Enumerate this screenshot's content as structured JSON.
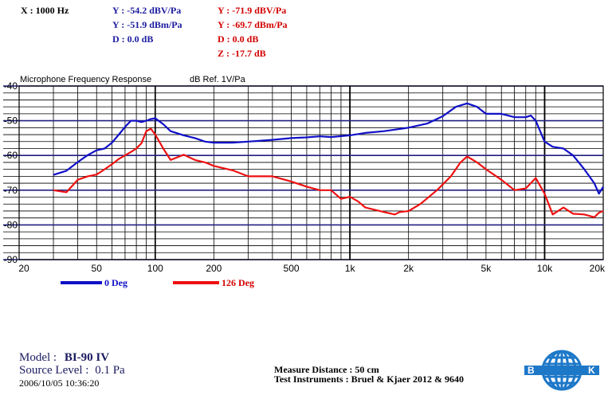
{
  "readout": {
    "x": "X : 1000 Hz",
    "blue": [
      "Y : -54.2 dBV/Pa",
      "Y : -51.9 dBm/Pa",
      "D : 0.0 dB"
    ],
    "red": [
      "Y : -71.9 dBV/Pa",
      "Y : -69.7 dBm/Pa",
      "D : 0.0 dB",
      "Z : -17.7 dB"
    ]
  },
  "colors": {
    "blue": "#1010c8",
    "red": "#ee1111",
    "grid": "#000000"
  },
  "chart_data": {
    "type": "line",
    "title": "Microphone Frequency Response",
    "ylabel": "dB Ref. 1V/Pa",
    "xscale": "log",
    "xlim": [
      20,
      20000
    ],
    "ylim": [
      -90,
      -40
    ],
    "grid": true,
    "x_ticks": [
      20,
      50,
      100,
      200,
      500,
      1000,
      2000,
      5000,
      10000,
      20000
    ],
    "x_tick_labels": [
      "20",
      "50",
      "100",
      "200",
      "500",
      "1k",
      "2k",
      "5k",
      "10k",
      "20k"
    ],
    "y_ticks": [
      -40,
      -50,
      -60,
      -70,
      -80,
      -90
    ],
    "y_tick_labels": [
      "-40",
      "-50",
      "-60",
      "-70",
      "-80",
      "-90"
    ],
    "series": [
      {
        "name": "0 Deg",
        "color": "#1010c8",
        "points": [
          [
            30,
            -65.6
          ],
          [
            35,
            -64.4
          ],
          [
            40,
            -61.9
          ],
          [
            45,
            -59.9
          ],
          [
            50,
            -58.5
          ],
          [
            55,
            -58.0
          ],
          [
            60,
            -56.3
          ],
          [
            65,
            -54.0
          ],
          [
            70,
            -51.8
          ],
          [
            75,
            -50.0
          ],
          [
            80,
            -50.0
          ],
          [
            85,
            -50.4
          ],
          [
            90,
            -50.0
          ],
          [
            95,
            -49.5
          ],
          [
            100,
            -49.3
          ],
          [
            110,
            -51.0
          ],
          [
            120,
            -53.0
          ],
          [
            140,
            -54.2
          ],
          [
            160,
            -55.0
          ],
          [
            180,
            -56.0
          ],
          [
            200,
            -56.3
          ],
          [
            250,
            -56.3
          ],
          [
            300,
            -56.0
          ],
          [
            400,
            -55.5
          ],
          [
            500,
            -55.0
          ],
          [
            600,
            -54.8
          ],
          [
            700,
            -54.5
          ],
          [
            800,
            -54.7
          ],
          [
            1000,
            -54.2
          ],
          [
            1200,
            -53.5
          ],
          [
            1500,
            -53.0
          ],
          [
            2000,
            -52.0
          ],
          [
            2500,
            -50.8
          ],
          [
            3000,
            -48.7
          ],
          [
            3500,
            -46.0
          ],
          [
            4000,
            -45.0
          ],
          [
            4500,
            -46.0
          ],
          [
            5000,
            -48.0
          ],
          [
            6000,
            -48.0
          ],
          [
            7000,
            -49.0
          ],
          [
            8000,
            -49.0
          ],
          [
            8500,
            -48.5
          ],
          [
            9000,
            -50.0
          ],
          [
            10000,
            -56.0
          ],
          [
            11000,
            -57.5
          ],
          [
            12500,
            -58.0
          ],
          [
            14000,
            -60.0
          ],
          [
            16000,
            -64.0
          ],
          [
            18000,
            -68.0
          ],
          [
            19000,
            -71.0
          ],
          [
            20000,
            -69.0
          ]
        ]
      },
      {
        "name": "126 Deg",
        "color": "#ee1111",
        "points": [
          [
            30,
            -70.0
          ],
          [
            35,
            -70.6
          ],
          [
            40,
            -67.0
          ],
          [
            45,
            -66.0
          ],
          [
            50,
            -65.5
          ],
          [
            55,
            -64.0
          ],
          [
            60,
            -62.5
          ],
          [
            65,
            -61.0
          ],
          [
            70,
            -60.0
          ],
          [
            75,
            -59.0
          ],
          [
            80,
            -58.0
          ],
          [
            85,
            -56.5
          ],
          [
            90,
            -53.0
          ],
          [
            95,
            -52.3
          ],
          [
            100,
            -54.0
          ],
          [
            110,
            -58.0
          ],
          [
            120,
            -61.3
          ],
          [
            140,
            -59.8
          ],
          [
            160,
            -61.3
          ],
          [
            180,
            -62.0
          ],
          [
            200,
            -63.0
          ],
          [
            250,
            -64.3
          ],
          [
            300,
            -66.0
          ],
          [
            400,
            -66.0
          ],
          [
            500,
            -67.5
          ],
          [
            600,
            -69.0
          ],
          [
            700,
            -70.0
          ],
          [
            800,
            -70.0
          ],
          [
            900,
            -72.5
          ],
          [
            1000,
            -71.9
          ],
          [
            1100,
            -73.2
          ],
          [
            1200,
            -75.0
          ],
          [
            1500,
            -76.3
          ],
          [
            1700,
            -77.0
          ],
          [
            1800,
            -76.3
          ],
          [
            2000,
            -76.0
          ],
          [
            2300,
            -74.0
          ],
          [
            2800,
            -70.0
          ],
          [
            3300,
            -66.0
          ],
          [
            3700,
            -62.0
          ],
          [
            4000,
            -60.3
          ],
          [
            4500,
            -62.0
          ],
          [
            5000,
            -64.0
          ],
          [
            6000,
            -67.0
          ],
          [
            7000,
            -70.0
          ],
          [
            8000,
            -69.5
          ],
          [
            9000,
            -66.5
          ],
          [
            10000,
            -71.0
          ],
          [
            11000,
            -77.0
          ],
          [
            12500,
            -75.0
          ],
          [
            14000,
            -76.8
          ],
          [
            16000,
            -77.0
          ],
          [
            18000,
            -77.8
          ],
          [
            19000,
            -76.5
          ],
          [
            20000,
            -76.0
          ]
        ]
      }
    ]
  },
  "legend": [
    {
      "label": "0 Deg",
      "color": "#1010c8"
    },
    {
      "label": "126 Deg",
      "color": "#ee1111"
    }
  ],
  "footer": {
    "model_label": "Model :",
    "model_value": "BI-90   IV",
    "source_label": "Source Level :",
    "source_value": "0.1 Pa",
    "datetime": "2006/10/05 10:36:20",
    "distance": "Measure Distance : 50 cm",
    "instruments": "Test Instruments : Bruel & Kjaer 2012 & 9640"
  },
  "logo": {
    "letter_left": "B",
    "letter_right": "K",
    "icon": "globe-logo"
  }
}
